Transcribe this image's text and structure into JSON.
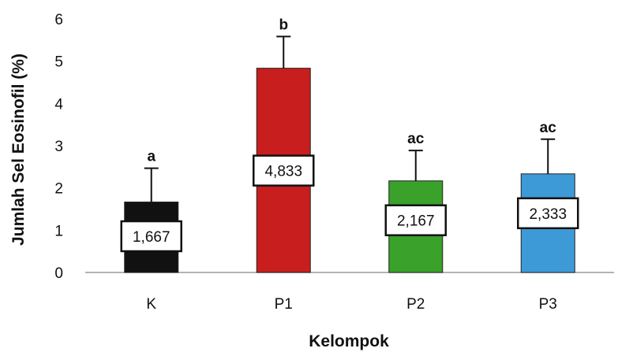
{
  "chart_data": {
    "type": "bar",
    "xlabel": "Kelompok",
    "ylabel": "Jumlah Sel Eosinofil (%)",
    "ylim": [
      0,
      6
    ],
    "yticks": [
      0,
      1,
      2,
      3,
      4,
      5,
      6
    ],
    "grid": false,
    "categories": [
      "K",
      "P1",
      "P2",
      "P3"
    ],
    "values": [
      1.667,
      4.833,
      2.167,
      2.333
    ],
    "value_labels": [
      "1,667",
      "4,833",
      "2,167",
      "2,333"
    ],
    "error_upper": [
      0.8,
      0.75,
      0.72,
      0.82
    ],
    "significance": [
      "a",
      "b",
      "ac",
      "ac"
    ],
    "colors": [
      "#111111",
      "#c81e1e",
      "#3aa12a",
      "#3d9ad6"
    ]
  }
}
